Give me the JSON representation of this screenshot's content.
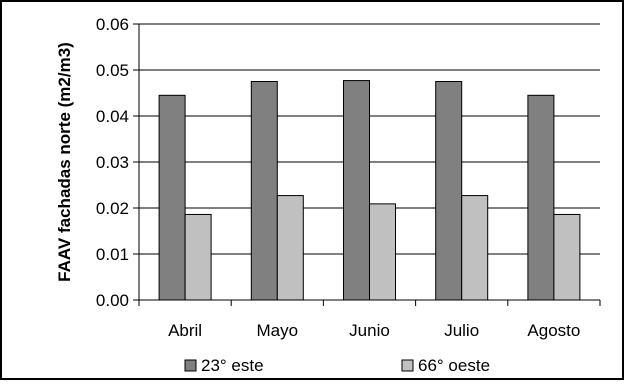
{
  "chart_data": {
    "type": "bar",
    "title": "",
    "xlabel": "",
    "ylabel": "FAAV fachadas norte (m2/m3)",
    "categories": [
      "Abril",
      "Mayo",
      "Junio",
      "Julio",
      "Agosto"
    ],
    "series": [
      {
        "name": "23° este",
        "values": [
          0.0445,
          0.0475,
          0.0477,
          0.0475,
          0.0445
        ],
        "color": "#808080"
      },
      {
        "name": "66° oeste",
        "values": [
          0.0186,
          0.0227,
          0.0209,
          0.0227,
          0.0186
        ],
        "color": "#c0c0c0"
      }
    ],
    "ylim": [
      0,
      0.06
    ],
    "yticks": [
      "0.00",
      "0.01",
      "0.02",
      "0.03",
      "0.04",
      "0.05",
      "0.06"
    ],
    "grid": true,
    "legend_position": "bottom"
  }
}
